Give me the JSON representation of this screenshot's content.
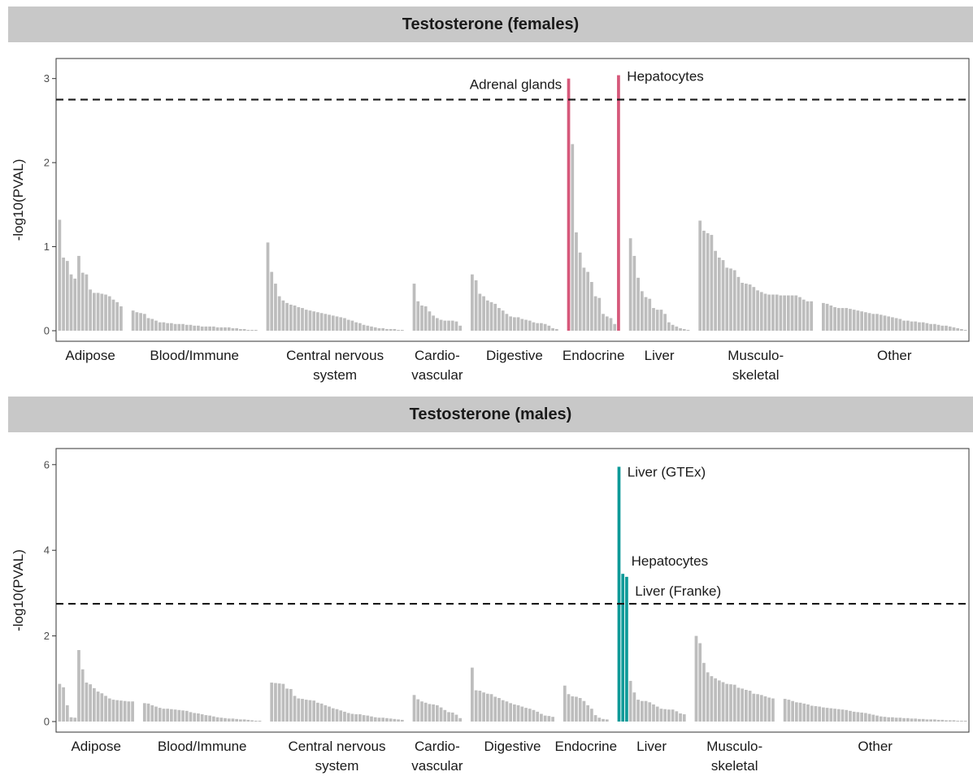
{
  "chart_data": [
    {
      "type": "bar",
      "title": "Testosterone (females)",
      "ylabel": "-log10(PVAL)",
      "ylim": [
        0,
        3.2
      ],
      "yticks": [
        0,
        1,
        2,
        3
      ],
      "threshold": 2.75,
      "grid": false,
      "highlight_color": "#d6587a",
      "bar_color": "#bdbdbd",
      "categories": [
        {
          "label": "Adipose",
          "values": [
            1.32,
            0.87,
            0.83,
            0.67,
            0.62,
            0.89,
            0.69,
            0.67,
            0.49,
            0.45,
            0.45,
            0.44,
            0.43,
            0.41,
            0.37,
            0.34,
            0.29
          ]
        },
        {
          "label": "Blood/Immune",
          "values": [
            0.24,
            0.22,
            0.21,
            0.2,
            0.15,
            0.14,
            0.12,
            0.1,
            0.1,
            0.09,
            0.09,
            0.08,
            0.08,
            0.08,
            0.07,
            0.07,
            0.06,
            0.06,
            0.05,
            0.05,
            0.05,
            0.05,
            0.04,
            0.04,
            0.04,
            0.04,
            0.03,
            0.03,
            0.02,
            0.02,
            0.01,
            0.01,
            0.01
          ]
        },
        {
          "label": "Central nervous system",
          "values": [
            1.05,
            0.7,
            0.56,
            0.41,
            0.36,
            0.33,
            0.31,
            0.3,
            0.28,
            0.27,
            0.25,
            0.24,
            0.23,
            0.22,
            0.21,
            0.2,
            0.19,
            0.18,
            0.17,
            0.16,
            0.15,
            0.13,
            0.12,
            0.1,
            0.09,
            0.07,
            0.06,
            0.05,
            0.04,
            0.03,
            0.03,
            0.02,
            0.02,
            0.02,
            0.01,
            0.01
          ]
        },
        {
          "label": "Cardio- vascular",
          "values": [
            0.56,
            0.35,
            0.3,
            0.29,
            0.23,
            0.18,
            0.15,
            0.13,
            0.12,
            0.12,
            0.12,
            0.11,
            0.06
          ]
        },
        {
          "label": "Digestive",
          "values": [
            0.67,
            0.6,
            0.44,
            0.41,
            0.36,
            0.34,
            0.32,
            0.27,
            0.24,
            0.2,
            0.17,
            0.16,
            0.16,
            0.14,
            0.13,
            0.12,
            0.1,
            0.09,
            0.09,
            0.08,
            0.06,
            0.03,
            0.02
          ]
        },
        {
          "label": "Endocrine",
          "values": [
            3.0,
            2.22,
            1.17,
            0.93,
            0.75,
            0.7,
            0.58,
            0.41,
            0.39,
            0.2,
            0.17,
            0.15,
            0.08,
            3.04
          ],
          "highlight": [
            0,
            13
          ]
        },
        {
          "label": "Liver",
          "values": [
            1.1,
            0.89,
            0.63,
            0.47,
            0.4,
            0.38,
            0.27,
            0.25,
            0.25,
            0.2,
            0.1,
            0.07,
            0.05,
            0.03,
            0.02,
            0.01
          ]
        },
        {
          "label": "Musculo- skeletal",
          "values": [
            1.31,
            1.19,
            1.16,
            1.14,
            0.95,
            0.87,
            0.84,
            0.75,
            0.74,
            0.72,
            0.64,
            0.57,
            0.56,
            0.55,
            0.52,
            0.48,
            0.46,
            0.44,
            0.43,
            0.43,
            0.43,
            0.42,
            0.42,
            0.42,
            0.42,
            0.42,
            0.4,
            0.37,
            0.35,
            0.35
          ]
        },
        {
          "label": "Other",
          "values": [
            0.33,
            0.32,
            0.3,
            0.28,
            0.27,
            0.27,
            0.27,
            0.26,
            0.25,
            0.24,
            0.23,
            0.22,
            0.21,
            0.2,
            0.2,
            0.19,
            0.18,
            0.17,
            0.16,
            0.15,
            0.14,
            0.12,
            0.12,
            0.11,
            0.11,
            0.1,
            0.1,
            0.09,
            0.08,
            0.08,
            0.07,
            0.06,
            0.06,
            0.05,
            0.04,
            0.03,
            0.02,
            0.01
          ]
        }
      ],
      "annotations": [
        {
          "text": "Adrenal glands",
          "category": 5,
          "bar": 0,
          "side": "left"
        },
        {
          "text": "Hepatocytes",
          "category": 5,
          "bar": 13,
          "side": "right"
        }
      ]
    },
    {
      "type": "bar",
      "title": "Testosterone (males)",
      "ylabel": "-log10(PVAL)",
      "ylim": [
        0,
        6.3
      ],
      "yticks": [
        0,
        2,
        4,
        6
      ],
      "threshold": 2.75,
      "grid": false,
      "highlight_color": "#0e9a98",
      "bar_color": "#bdbdbd",
      "categories": [
        {
          "label": "Adipose",
          "values": [
            0.88,
            0.8,
            0.38,
            0.1,
            0.09,
            1.67,
            1.22,
            0.91,
            0.87,
            0.78,
            0.7,
            0.66,
            0.6,
            0.54,
            0.51,
            0.5,
            0.49,
            0.48,
            0.47,
            0.47
          ]
        },
        {
          "label": "Blood/Immune",
          "values": [
            0.43,
            0.42,
            0.38,
            0.35,
            0.32,
            0.3,
            0.3,
            0.29,
            0.28,
            0.27,
            0.26,
            0.25,
            0.22,
            0.2,
            0.19,
            0.17,
            0.15,
            0.14,
            0.12,
            0.1,
            0.09,
            0.08,
            0.07,
            0.07,
            0.06,
            0.05,
            0.05,
            0.04,
            0.03,
            0.02,
            0.02
          ]
        },
        {
          "label": "Central nervous system",
          "values": [
            0.91,
            0.9,
            0.89,
            0.88,
            0.77,
            0.76,
            0.6,
            0.54,
            0.53,
            0.51,
            0.5,
            0.49,
            0.44,
            0.42,
            0.38,
            0.35,
            0.31,
            0.29,
            0.26,
            0.23,
            0.2,
            0.18,
            0.17,
            0.17,
            0.15,
            0.14,
            0.12,
            0.1,
            0.09,
            0.09,
            0.08,
            0.07,
            0.06,
            0.05,
            0.04
          ]
        },
        {
          "label": "Cardio- vascular",
          "values": [
            0.62,
            0.52,
            0.47,
            0.44,
            0.41,
            0.4,
            0.38,
            0.33,
            0.27,
            0.22,
            0.21,
            0.16,
            0.08
          ]
        },
        {
          "label": "Digestive",
          "values": [
            1.26,
            0.73,
            0.72,
            0.68,
            0.65,
            0.64,
            0.58,
            0.55,
            0.5,
            0.47,
            0.43,
            0.4,
            0.38,
            0.35,
            0.32,
            0.3,
            0.27,
            0.23,
            0.18,
            0.14,
            0.13,
            0.11
          ]
        },
        {
          "label": "Endocrine",
          "values": [
            0.84,
            0.64,
            0.59,
            0.58,
            0.55,
            0.48,
            0.38,
            0.3,
            0.15,
            0.09,
            0.06,
            0.05
          ]
        },
        {
          "label": "Liver",
          "values": [
            5.95,
            3.45,
            3.38,
            0.95,
            0.68,
            0.51,
            0.48,
            0.48,
            0.45,
            0.4,
            0.35,
            0.3,
            0.29,
            0.28,
            0.28,
            0.24,
            0.19,
            0.17
          ]
        },
        {
          "label": "Musculo- skeletal",
          "values": [
            2.0,
            1.83,
            1.37,
            1.15,
            1.06,
            1.01,
            0.96,
            0.92,
            0.88,
            0.87,
            0.86,
            0.79,
            0.77,
            0.74,
            0.72,
            0.65,
            0.64,
            0.62,
            0.59,
            0.56,
            0.54
          ]
        },
        {
          "label": "Other",
          "values": [
            0.53,
            0.51,
            0.48,
            0.45,
            0.44,
            0.42,
            0.4,
            0.37,
            0.36,
            0.35,
            0.33,
            0.32,
            0.31,
            0.3,
            0.29,
            0.28,
            0.27,
            0.25,
            0.23,
            0.22,
            0.21,
            0.2,
            0.18,
            0.16,
            0.14,
            0.12,
            0.11,
            0.1,
            0.1,
            0.09,
            0.09,
            0.08,
            0.08,
            0.07,
            0.07,
            0.06,
            0.06,
            0.05,
            0.05,
            0.05,
            0.04,
            0.04,
            0.03,
            0.03,
            0.03,
            0.02,
            0.02,
            0.02
          ]
        }
      ],
      "highlights": [
        {
          "category": 6,
          "bars": [
            0,
            1,
            2
          ]
        }
      ],
      "annotations": [
        {
          "text": "Liver (GTEx)",
          "category": 6,
          "bar": 0,
          "side": "right"
        },
        {
          "text": "Hepatocytes",
          "category": 6,
          "bar": 1,
          "side": "right",
          "above": true
        },
        {
          "text": "Liver (Franke)",
          "category": 6,
          "bar": 2,
          "side": "right"
        }
      ]
    }
  ]
}
